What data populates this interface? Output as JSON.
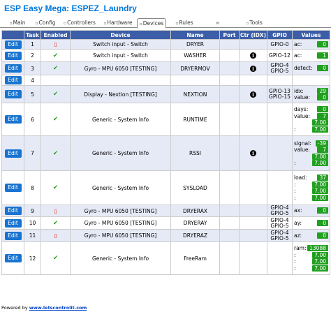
{
  "title": "ESP Easy Mega: ESPEZ_Laundry",
  "tabs": [
    {
      "label": "Main",
      "icon": "home-icon"
    },
    {
      "label": "Config",
      "icon": "config-icon"
    },
    {
      "label": "Controllers",
      "icon": "controllers-icon"
    },
    {
      "label": "Hardware",
      "icon": "hardware-icon"
    },
    {
      "label": "Devices",
      "icon": "devices-icon",
      "active": true
    },
    {
      "label": "Rules",
      "icon": "rules-icon"
    },
    {
      "label": "Notifications",
      "icon": "mail-icon"
    },
    {
      "label": "Tools",
      "icon": "tools-icon"
    }
  ],
  "table": {
    "headers": [
      "",
      "Task",
      "Enabled",
      "Device",
      "Name",
      "Port",
      "Ctr (IDX)",
      "GPIO",
      "Values"
    ],
    "edit_label": "Edit",
    "rows": [
      {
        "task": "1",
        "enabled": "no",
        "device": "Switch input - Switch",
        "name": "DRYER",
        "ctr": "",
        "gpio": [
          "GPIO-0"
        ],
        "values": [
          {
            "n": "ac:",
            "v": "0"
          }
        ]
      },
      {
        "task": "2",
        "enabled": "yes",
        "device": "Switch input - Switch",
        "name": "WASHER",
        "ctr": "info",
        "gpio": [
          "GPIO-12"
        ],
        "values": [
          {
            "n": "ac:",
            "v": "1"
          }
        ]
      },
      {
        "task": "3",
        "enabled": "yes",
        "device": "Gyro - MPU 6050 [TESTING]",
        "name": "DRYERMOV",
        "ctr": "info",
        "gpio": [
          "GPIO-4",
          "GPIO-5"
        ],
        "values": [
          {
            "n": "detect:",
            "v": "0"
          }
        ]
      },
      {
        "task": "4",
        "enabled": "",
        "device": "",
        "name": "",
        "ctr": "",
        "gpio": [],
        "values": []
      },
      {
        "task": "5",
        "enabled": "yes",
        "device": "Display - Nextion [TESTING]",
        "name": "NEXTION",
        "ctr": "info",
        "gpio": [
          "GPIO-13",
          "GPIO-15"
        ],
        "values": [
          {
            "n": "idx:",
            "v": "29"
          },
          {
            "n": "value:",
            "v": "0"
          }
        ]
      },
      {
        "task": "6",
        "enabled": "yes",
        "device": "Generic - System Info",
        "name": "RUNTIME",
        "ctr": "",
        "gpio": [],
        "values": [
          {
            "n": "days:",
            "v": "0"
          },
          {
            "n": "value:",
            "v": "7"
          },
          {
            "n": "",
            "v": "7.00"
          },
          {
            "n": ":",
            "v": "7.00"
          }
        ]
      },
      {
        "task": "7",
        "enabled": "yes",
        "device": "Generic - System Info",
        "name": "RSSI",
        "ctr": "info",
        "gpio": [],
        "values": [
          {
            "n": "signal:",
            "v": "-39"
          },
          {
            "n": "value:",
            "v": "7"
          },
          {
            "n": "",
            "v": "7.00"
          },
          {
            "n": ":",
            "v": "7.00"
          }
        ]
      },
      {
        "task": "8",
        "enabled": "yes",
        "device": "Generic - System Info",
        "name": "SYSLOAD",
        "ctr": "",
        "gpio": [],
        "values": [
          {
            "n": "load:",
            "v": "37"
          },
          {
            "n": ":",
            "v": "7.00"
          },
          {
            "n": ":",
            "v": "7.00"
          },
          {
            "n": ":",
            "v": "7.00"
          }
        ]
      },
      {
        "task": "9",
        "enabled": "no",
        "device": "Gyro - MPU 6050 [TESTING]",
        "name": "DRYERAX",
        "ctr": "",
        "gpio": [
          "GPIO-4",
          "GPIO-5"
        ],
        "values": [
          {
            "n": "ax:",
            "v": "0"
          }
        ]
      },
      {
        "task": "10",
        "enabled": "yes",
        "device": "Gyro - MPU 6050 [TESTING]",
        "name": "DRYERAY",
        "ctr": "",
        "gpio": [
          "GPIO-4",
          "GPIO-5"
        ],
        "values": [
          {
            "n": "ay:",
            "v": "0"
          }
        ]
      },
      {
        "task": "11",
        "enabled": "no",
        "device": "Gyro - MPU 6050 [TESTING]",
        "name": "DRYERAZ",
        "ctr": "",
        "gpio": [
          "GPIO-4",
          "GPIO-5"
        ],
        "values": [
          {
            "n": "az:",
            "v": "0"
          }
        ]
      },
      {
        "task": "12",
        "enabled": "yes",
        "device": "Generic - System Info",
        "name": "FreeRam",
        "ctr": "",
        "gpio": [],
        "values": [
          {
            "n": "ram:",
            "v": "13088"
          },
          {
            "n": ":",
            "v": "7.00"
          },
          {
            "n": ":",
            "v": "7.00"
          },
          {
            "n": ":",
            "v": "7.00"
          }
        ]
      }
    ]
  },
  "footer": {
    "prefix": "Powered by ",
    "link": "www.letscontrolit.com"
  },
  "colors": {
    "header_bg": "#3c5ea8",
    "accent": "#0077dd",
    "badge": "#21a020",
    "edit": "#1874d0",
    "alt_row": "#e6eaf7"
  }
}
